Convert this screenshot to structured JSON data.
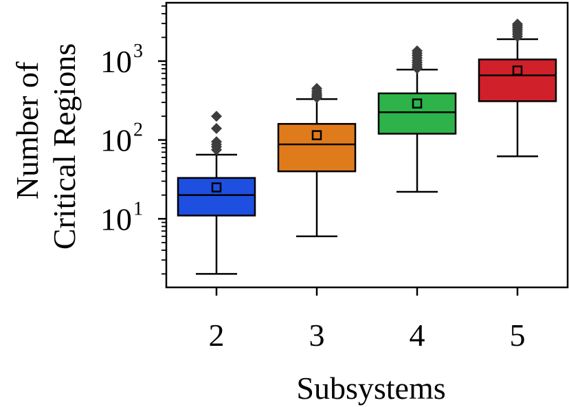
{
  "chart_data": {
    "type": "box",
    "xlabel": "Subsystems",
    "ylabel_lines": [
      "Number of",
      "Critical Regions"
    ],
    "yscale": "log",
    "ylim": [
      1.35,
      5500
    ],
    "y_ticks": [
      {
        "base": "10",
        "exp": "1",
        "value": 10
      },
      {
        "base": "10",
        "exp": "2",
        "value": 100
      },
      {
        "base": "10",
        "exp": "3",
        "value": 1000
      }
    ],
    "grid": false,
    "categories": [
      "2",
      "3",
      "4",
      "5"
    ],
    "boxes": [
      {
        "category": "2",
        "color": "#1f4fe0",
        "whisker_low": 2,
        "q1": 11,
        "median": 20,
        "q3": 33,
        "whisker_high": 65,
        "mean": 25,
        "outliers": [
          75,
          82,
          88,
          95,
          140,
          200
        ]
      },
      {
        "category": "3",
        "color": "#e07b1c",
        "whisker_low": 6,
        "q1": 40,
        "median": 88,
        "q3": 160,
        "whisker_high": 330,
        "mean": 115,
        "outliers": [
          345,
          360,
          375,
          395,
          420,
          450
        ]
      },
      {
        "category": "4",
        "color": "#2db34a",
        "whisker_low": 22,
        "q1": 120,
        "median": 225,
        "q3": 390,
        "whisker_high": 780,
        "mean": 290,
        "outliers": [
          810,
          850,
          900,
          960,
          1020,
          1100,
          1180,
          1260,
          1350
        ]
      },
      {
        "category": "5",
        "color": "#d0202a",
        "whisker_low": 62,
        "q1": 310,
        "median": 660,
        "q3": 1050,
        "whisker_high": 1900,
        "mean": 760,
        "outliers": [
          2050,
          2200,
          2350,
          2500,
          2650,
          2800,
          2950
        ]
      }
    ]
  }
}
